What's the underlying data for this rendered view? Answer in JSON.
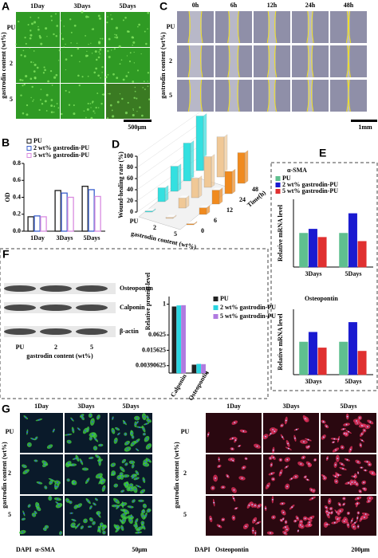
{
  "panels": {
    "A": {
      "label": "A",
      "columns": [
        "1Day",
        "3Days",
        "5Days"
      ],
      "rows": [
        "PU",
        "2",
        "5"
      ],
      "axis_label": "gastrodin content (wt%)",
      "scale_bar": "500μm"
    },
    "C": {
      "label": "C",
      "columns": [
        "0h",
        "6h",
        "12h",
        "24h",
        "48h"
      ],
      "rows": [
        "PU",
        "2",
        "5"
      ],
      "axis_label": "gastrodin content (wt%)",
      "scale_bar": "1mm"
    },
    "F_blot": {
      "bands": [
        "Osteopontin",
        "Calponin",
        "β-actin"
      ],
      "lanes": [
        "PU",
        "2",
        "5"
      ],
      "axis_label": "gastrodin content (wt%)"
    },
    "G": {
      "label": "G",
      "left": {
        "columns": [
          "1Day",
          "3Days",
          "5Days"
        ],
        "rows": [
          "PU",
          "2",
          "5"
        ],
        "axis_label": "gastrodin content (wt%)",
        "stains": [
          "DAPI",
          "α-SMA"
        ],
        "scale_bar": "50μm"
      },
      "right": {
        "columns": [
          "1Day",
          "3Days",
          "5Days"
        ],
        "rows": [
          "PU",
          "2",
          "5"
        ],
        "axis_label": "gastrodin content (wt%)",
        "stains": [
          "DAPI",
          "Osteopontin"
        ],
        "scale_bar": "200μm"
      }
    }
  },
  "chart_data": [
    {
      "type": "bar",
      "panel_label": "B",
      "ylabel": "OD",
      "categories": [
        "1Day",
        "3Days",
        "5Days"
      ],
      "series": [
        {
          "name": "PU",
          "color": "#1a1a1a",
          "values": [
            0.17,
            0.48,
            0.53
          ]
        },
        {
          "name": "2 wt% gastrodin-PU",
          "color": "#3a5fcd",
          "values": [
            0.18,
            0.45,
            0.49
          ]
        },
        {
          "name": "5 wt% gastrodin-PU",
          "color": "#d98be0",
          "values": [
            0.17,
            0.4,
            0.41
          ]
        }
      ],
      "ylim": [
        0,
        0.8
      ],
      "yticks": [
        {
          "value": 0,
          "label": "0.0"
        },
        {
          "value": 0.2,
          "label": "0.2"
        },
        {
          "value": 0.4,
          "label": "0.4"
        },
        {
          "value": 0.6,
          "label": "0.6"
        },
        {
          "value": 0.8,
          "label": "0.8"
        }
      ]
    },
    {
      "type": "bar3d",
      "panel_label": "D",
      "ylabel": "Wound-healing rate (%)",
      "xlabel": "Time(h)",
      "zlabel": "gastrodin content (wt%)",
      "categories": [
        "0",
        "6",
        "12",
        "24",
        "48"
      ],
      "series": [
        {
          "name": "PU",
          "color": "#33e0e0",
          "values": [
            2,
            25,
            45,
            68,
            98
          ]
        },
        {
          "name": "2",
          "color": "#f0c896",
          "values": [
            2,
            18,
            35,
            55,
            72
          ]
        },
        {
          "name": "5",
          "color": "#f08a1e",
          "values": [
            2,
            12,
            25,
            40,
            55
          ]
        }
      ],
      "ylim": [
        0,
        100
      ],
      "yticks": [
        0,
        20,
        40,
        60,
        80,
        100
      ]
    },
    {
      "type": "bar",
      "panel_label": "E",
      "title": "α-SMA",
      "ylabel": "Relative mRNA level",
      "categories": [
        "3Days",
        "5Days"
      ],
      "series": [
        {
          "name": "PU",
          "color": "#5fbf8f",
          "values": [
            1.0,
            1.0
          ]
        },
        {
          "name": "2 wt% gastrodin-PU",
          "color": "#1a1ad0",
          "values": [
            1.12,
            1.58
          ]
        },
        {
          "name": "5 wt% gastrodin-PU",
          "color": "#e03030",
          "values": [
            0.88,
            0.76
          ]
        }
      ],
      "ylim": [
        0,
        2
      ]
    },
    {
      "type": "bar",
      "title": "Osteopontin",
      "ylabel": "Relative mRNA level",
      "categories": [
        "3Days",
        "5Days"
      ],
      "series": [
        {
          "color": "#5fbf8f",
          "values": [
            1.0,
            1.0
          ]
        },
        {
          "color": "#1a1ad0",
          "values": [
            1.3,
            1.6
          ]
        },
        {
          "color": "#e03030",
          "values": [
            0.82,
            0.72
          ]
        }
      ],
      "ylim": [
        0,
        2
      ]
    },
    {
      "type": "bar",
      "panel_label": "F",
      "ylabel": "Relative protein level",
      "ylog": true,
      "categories": [
        "Calponin",
        "Osteopontin"
      ],
      "series": [
        {
          "name": "PU",
          "color": "#222222",
          "values": [
            0.8,
            0.0042
          ]
        },
        {
          "name": "2 wt% gastrodin-PU",
          "color": "#2ad4e0",
          "values": [
            0.88,
            0.0045
          ]
        },
        {
          "name": "5 wt% gastrodin-PU",
          "color": "#b07ae0",
          "values": [
            0.9,
            0.0044
          ]
        }
      ],
      "ylim": [
        0.002,
        2
      ],
      "yticks": [
        1,
        0.0625,
        0.015625,
        0.00390625
      ]
    }
  ]
}
